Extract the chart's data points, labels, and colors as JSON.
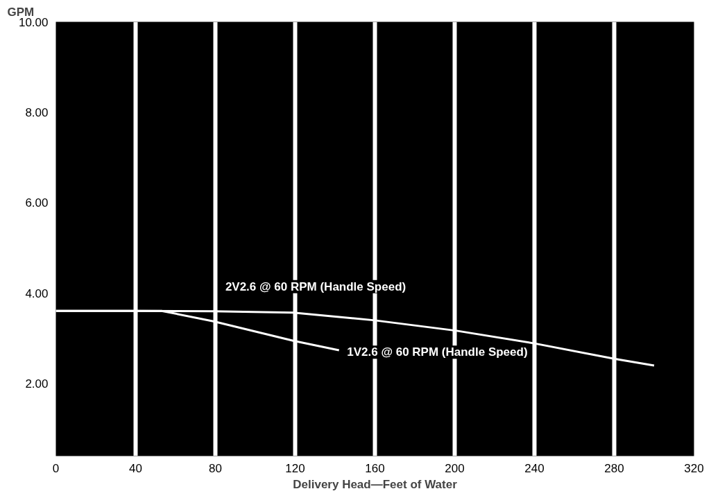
{
  "chart_data": {
    "type": "line",
    "xlabel": "Delivery Head—Feet of Water",
    "ylabel": "GPM",
    "xlim": [
      0,
      320
    ],
    "ylim": [
      0.4,
      10
    ],
    "xticks": [
      0,
      40,
      80,
      120,
      160,
      200,
      240,
      280,
      320
    ],
    "yticks": [
      {
        "value": 2,
        "label": "2.00"
      },
      {
        "value": 4,
        "label": "4.00"
      },
      {
        "value": 6,
        "label": "6.00"
      },
      {
        "value": 8,
        "label": "8.00"
      },
      {
        "value": 10,
        "label": "10.00"
      }
    ],
    "grid": "x",
    "marker": "none",
    "line_style": "solid",
    "series": [
      {
        "name": "2V2.6 @ 60 RPM (Handle Speed)",
        "color": "#ffffff",
        "x": [
          0,
          39,
          79,
          119,
          160,
          201,
          240,
          280,
          300
        ],
        "values": [
          3.61,
          3.61,
          3.6,
          3.57,
          3.4,
          3.17,
          2.89,
          2.55,
          2.4
        ]
      },
      {
        "name": "1V2.6 @ 60 RPM (Handle Speed)",
        "color": "#ffffff",
        "x": [
          0,
          39,
          53,
          79,
          119,
          142
        ],
        "values": [
          3.61,
          3.61,
          3.61,
          3.38,
          2.95,
          2.74
        ]
      }
    ]
  }
}
